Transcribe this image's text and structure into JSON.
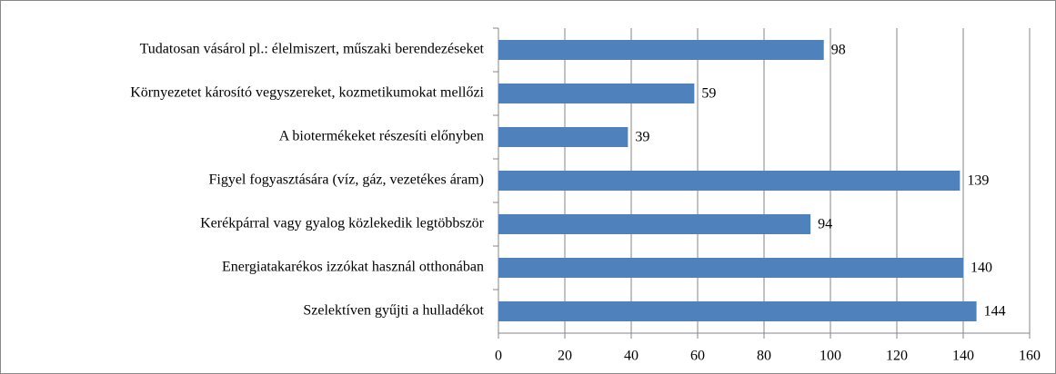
{
  "chart_data": {
    "type": "bar",
    "orientation": "horizontal",
    "categories": [
      "Tudatosan vásárol pl.: élelmiszert, műszaki berendezéseket",
      "Környezetet károsító vegyszereket, kozmetikumokat mellőzi",
      "A biotermékeket részesíti előnyben",
      "Figyel fogyasztására (víz, gáz, vezetékes áram)",
      "Kerékpárral vagy gyalog közlekedik legtöbbször",
      "Energiatakarékos izzókat használ otthonában",
      "Szelektíven gyűjti a hulladékot"
    ],
    "values": [
      98,
      59,
      39,
      139,
      94,
      140,
      144
    ],
    "color": "#4f81bd",
    "xlim": [
      0,
      160
    ],
    "xticks": [
      0,
      20,
      40,
      60,
      80,
      100,
      120,
      140,
      160
    ],
    "grid": true
  }
}
